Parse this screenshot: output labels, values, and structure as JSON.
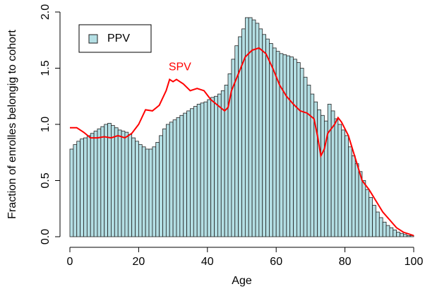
{
  "chart_data": {
    "type": "histogram",
    "xlabel": "Age",
    "ylabel": "Fraction of enrolles belongig to cohort",
    "bins": [
      0,
      1,
      2,
      3,
      4,
      5,
      6,
      7,
      8,
      9,
      10,
      11,
      12,
      13,
      14,
      15,
      16,
      17,
      18,
      19,
      20,
      21,
      22,
      23,
      24,
      25,
      26,
      27,
      28,
      29,
      30,
      31,
      32,
      33,
      34,
      35,
      36,
      37,
      38,
      39,
      40,
      41,
      42,
      43,
      44,
      45,
      46,
      47,
      48,
      49,
      50,
      51,
      52,
      53,
      54,
      55,
      56,
      57,
      58,
      59,
      60,
      61,
      62,
      63,
      64,
      65,
      66,
      67,
      68,
      69,
      70,
      71,
      72,
      73,
      74,
      75,
      76,
      77,
      78,
      79,
      80,
      81,
      82,
      83,
      84,
      85,
      86,
      87,
      88,
      89,
      90,
      91,
      92,
      93,
      94,
      95,
      96,
      97,
      98,
      99,
      100
    ],
    "series": [
      {
        "name": "PPV",
        "color": "#b4dfe4",
        "values": [
          0.78,
          0.82,
          0.85,
          0.87,
          0.88,
          0.9,
          0.92,
          0.94,
          0.96,
          0.98,
          1.0,
          1.01,
          0.99,
          0.97,
          0.95,
          0.94,
          0.93,
          0.91,
          0.88,
          0.85,
          0.82,
          0.8,
          0.78,
          0.78,
          0.8,
          0.84,
          0.9,
          0.96,
          1.0,
          1.02,
          1.04,
          1.06,
          1.08,
          1.1,
          1.12,
          1.14,
          1.16,
          1.18,
          1.19,
          1.2,
          1.22,
          1.24,
          1.25,
          1.27,
          1.3,
          1.35,
          1.45,
          1.58,
          1.7,
          1.78,
          1.85,
          1.95,
          1.95,
          1.93,
          1.9,
          1.85,
          1.8,
          1.76,
          1.72,
          1.68,
          1.65,
          1.63,
          1.62,
          1.61,
          1.6,
          1.58,
          1.55,
          1.5,
          1.42,
          1.35,
          1.27,
          1.2,
          1.13,
          1.08,
          1.03,
          1.18,
          1.12,
          1.05,
          1.0,
          0.95,
          0.9,
          0.8,
          0.72,
          0.65,
          0.58,
          0.5,
          0.42,
          0.35,
          0.28,
          0.22,
          0.17,
          0.13,
          0.1,
          0.08,
          0.06,
          0.04,
          0.03,
          0.02,
          0.01,
          0.01
        ]
      }
    ],
    "lines": [
      {
        "name": "SPV",
        "color": "#ff0000",
        "x": [
          0,
          2,
          4,
          6,
          8,
          10,
          12,
          14,
          16,
          18,
          20,
          22,
          24,
          26,
          28,
          29,
          30,
          31,
          33,
          35,
          37,
          39,
          41,
          43,
          45,
          46,
          47,
          49,
          51,
          53,
          55,
          57,
          59,
          61,
          63,
          65,
          67,
          69,
          71,
          72,
          73,
          74,
          75,
          77,
          78,
          79,
          81,
          83,
          85,
          87,
          89,
          91,
          93,
          95,
          97,
          99,
          100
        ],
        "values": [
          0.97,
          0.97,
          0.93,
          0.88,
          0.88,
          0.89,
          0.88,
          0.9,
          0.88,
          0.92,
          1.0,
          1.13,
          1.12,
          1.17,
          1.3,
          1.4,
          1.38,
          1.4,
          1.36,
          1.3,
          1.32,
          1.3,
          1.22,
          1.17,
          1.12,
          1.15,
          1.3,
          1.45,
          1.6,
          1.66,
          1.68,
          1.63,
          1.5,
          1.35,
          1.25,
          1.18,
          1.12,
          1.1,
          1.05,
          0.9,
          0.72,
          0.78,
          0.92,
          1.0,
          1.06,
          1.02,
          0.9,
          0.7,
          0.5,
          0.42,
          0.32,
          0.22,
          0.15,
          0.08,
          0.04,
          0.02,
          0.01
        ]
      }
    ],
    "annotations": [
      {
        "text": "SPV",
        "x": 32,
        "y": 1.48,
        "color": "#ff0000"
      }
    ],
    "xlim": [
      0,
      100
    ],
    "ylim": [
      0,
      2
    ],
    "xticks": [
      0,
      20,
      40,
      60,
      80,
      100
    ],
    "yticks": [
      {
        "value": 0,
        "label": "0.0"
      },
      {
        "value": 0.5,
        "label": "0.5"
      },
      {
        "value": 1,
        "label": "1.0"
      },
      {
        "value": 1.5,
        "label": "1.5"
      },
      {
        "value": 2,
        "label": "2.0"
      }
    ],
    "legend": "top-left"
  }
}
